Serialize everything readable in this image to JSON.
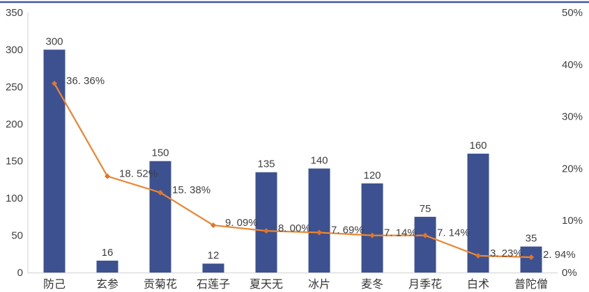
{
  "accent_rule_color": "#46569f",
  "chart_data": {
    "type": "bar+line",
    "categories": [
      "防己",
      "玄参",
      "贡菊花",
      "石莲子",
      "夏天无",
      "冰片",
      "麦冬",
      "月季花",
      "白术",
      "普陀僧"
    ],
    "series": [
      {
        "name": "frequency-bars",
        "type": "bar",
        "axis": "left",
        "values": [
          300,
          16,
          150,
          12,
          135,
          140,
          120,
          75,
          160,
          35
        ],
        "labels": [
          "300",
          "16",
          "150",
          "12",
          "135",
          "140",
          "120",
          "75",
          "160",
          "35"
        ]
      },
      {
        "name": "percentage-line",
        "type": "line",
        "axis": "right",
        "values": [
          36.36,
          18.52,
          15.38,
          9.09,
          8.0,
          7.69,
          7.14,
          7.14,
          3.23,
          2.94
        ],
        "labels": [
          "36. 36%",
          "18. 52%",
          "15. 38%",
          "9. 09%",
          "8. 00%",
          "7. 69%",
          "7. 14%",
          "7. 14%",
          "3. 23%",
          "2. 94%"
        ]
      }
    ],
    "left_axis": {
      "min": 0,
      "max": 350,
      "tick_values": [
        0,
        50,
        100,
        150,
        200,
        250,
        300,
        350
      ],
      "tick_labels": [
        "0",
        "50",
        "100",
        "150",
        "200",
        "250",
        "300",
        "350"
      ]
    },
    "right_axis": {
      "min": 0,
      "max": 50,
      "tick_values": [
        0,
        10,
        20,
        30,
        40,
        50
      ],
      "tick_labels": [
        "0%",
        "10%",
        "20%",
        "30%",
        "40%",
        "50%"
      ]
    },
    "colors": {
      "bar": "#3d5191",
      "line": "#ed8733",
      "marker": "#dd762b",
      "axis_line": "#d9d9d9"
    },
    "grid": "off",
    "legend": "none",
    "title": ""
  }
}
